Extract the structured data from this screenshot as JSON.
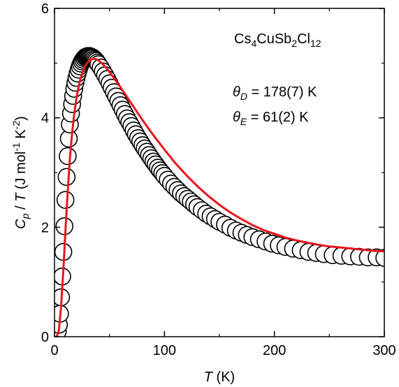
{
  "chart_data": {
    "type": "scatter",
    "xlabel": {
      "symbol": "T",
      "unit": "(K)"
    },
    "ylabel": {
      "symbol": "C",
      "sub": "p",
      "mid": " / ",
      "sym2": "T",
      "unit_pre": " (J mol",
      "sup1": "-1",
      "unit_mid": " K",
      "sup2": "-2",
      "unit_post": ")"
    },
    "xlim": [
      0,
      300
    ],
    "ylim": [
      0,
      6
    ],
    "x_ticks": [
      "0",
      "100",
      "200",
      "300"
    ],
    "y_ticks": [
      "0",
      "2",
      "4",
      "6"
    ],
    "grid": false,
    "legend": "none",
    "compound": {
      "a": "Cs",
      "s1": "4",
      "b": "CuSb",
      "s2": "2",
      "c": "Cl",
      "s3": "12"
    },
    "params": [
      {
        "symbol": "θ",
        "sub": "D",
        "value": " = 178(7) K"
      },
      {
        "symbol": "θ",
        "sub": "E",
        "value": " = 61(2) K"
      }
    ],
    "series": [
      {
        "kind": "points",
        "marker": "open-circle",
        "color": "#000000",
        "x": [
          2,
          3,
          4,
          5,
          6,
          7,
          8,
          9,
          10,
          11,
          12,
          13,
          14,
          15,
          16,
          17,
          18,
          19,
          20,
          21,
          22,
          23,
          24,
          25,
          26,
          27,
          28,
          29,
          30,
          31,
          32,
          33,
          34,
          35,
          36,
          37,
          38,
          39,
          40,
          42,
          44,
          46,
          48,
          50,
          52,
          54,
          56,
          58,
          60,
          62,
          64,
          66,
          68,
          70,
          72,
          74,
          76,
          78,
          80,
          82,
          84,
          86,
          88,
          90,
          92,
          94,
          96,
          98,
          100,
          103,
          106,
          109,
          112,
          115,
          118,
          121,
          124,
          127,
          130,
          134,
          138,
          142,
          146,
          150,
          155,
          160,
          165,
          170,
          175,
          180,
          186,
          192,
          198,
          204,
          210,
          217,
          224,
          231,
          238,
          245,
          253,
          261,
          269,
          277,
          285,
          293,
          300
        ],
        "y": [
          0.05,
          0.1,
          0.22,
          0.42,
          0.72,
          1.1,
          1.55,
          2.02,
          2.5,
          2.92,
          3.3,
          3.62,
          3.88,
          4.08,
          4.25,
          4.4,
          4.53,
          4.64,
          4.73,
          4.81,
          4.88,
          4.94,
          4.99,
          5.03,
          5.06,
          5.09,
          5.11,
          5.12,
          5.13,
          5.13,
          5.13,
          5.12,
          5.11,
          5.1,
          5.08,
          5.06,
          5.04,
          5.01,
          4.98,
          4.92,
          4.85,
          4.78,
          4.71,
          4.63,
          4.55,
          4.47,
          4.39,
          4.31,
          4.23,
          4.15,
          4.07,
          3.99,
          3.92,
          3.85,
          3.77,
          3.7,
          3.63,
          3.57,
          3.5,
          3.44,
          3.38,
          3.32,
          3.26,
          3.2,
          3.15,
          3.09,
          3.04,
          2.99,
          2.94,
          2.87,
          2.8,
          2.74,
          2.68,
          2.62,
          2.57,
          2.52,
          2.47,
          2.42,
          2.37,
          2.31,
          2.25,
          2.2,
          2.15,
          2.1,
          2.05,
          1.99,
          1.94,
          1.9,
          1.86,
          1.82,
          1.78,
          1.74,
          1.7,
          1.67,
          1.64,
          1.61,
          1.58,
          1.55,
          1.53,
          1.51,
          1.49,
          1.48,
          1.47,
          1.46,
          1.45,
          1.45,
          1.44
        ]
      },
      {
        "kind": "line",
        "color": "#e8141c",
        "x": [
          2,
          4,
          6,
          8,
          10,
          12,
          14,
          16,
          18,
          20,
          22,
          24,
          26,
          28,
          30,
          32,
          34,
          36,
          38,
          40,
          45,
          50,
          55,
          60,
          70,
          80,
          90,
          100,
          110,
          120,
          130,
          140,
          150,
          160,
          170,
          180,
          190,
          200,
          210,
          220,
          230,
          240,
          250,
          260,
          270,
          280,
          290,
          300
        ],
        "y": [
          0.0,
          0.12,
          0.55,
          1.2,
          1.95,
          2.65,
          3.25,
          3.72,
          4.08,
          4.36,
          4.58,
          4.74,
          4.86,
          4.95,
          5.01,
          5.05,
          5.07,
          5.08,
          5.07,
          5.05,
          4.96,
          4.84,
          4.7,
          4.56,
          4.26,
          3.96,
          3.68,
          3.42,
          3.17,
          2.95,
          2.75,
          2.57,
          2.41,
          2.27,
          2.15,
          2.04,
          1.95,
          1.88,
          1.81,
          1.76,
          1.72,
          1.68,
          1.65,
          1.63,
          1.61,
          1.59,
          1.57,
          1.56
        ]
      }
    ]
  }
}
